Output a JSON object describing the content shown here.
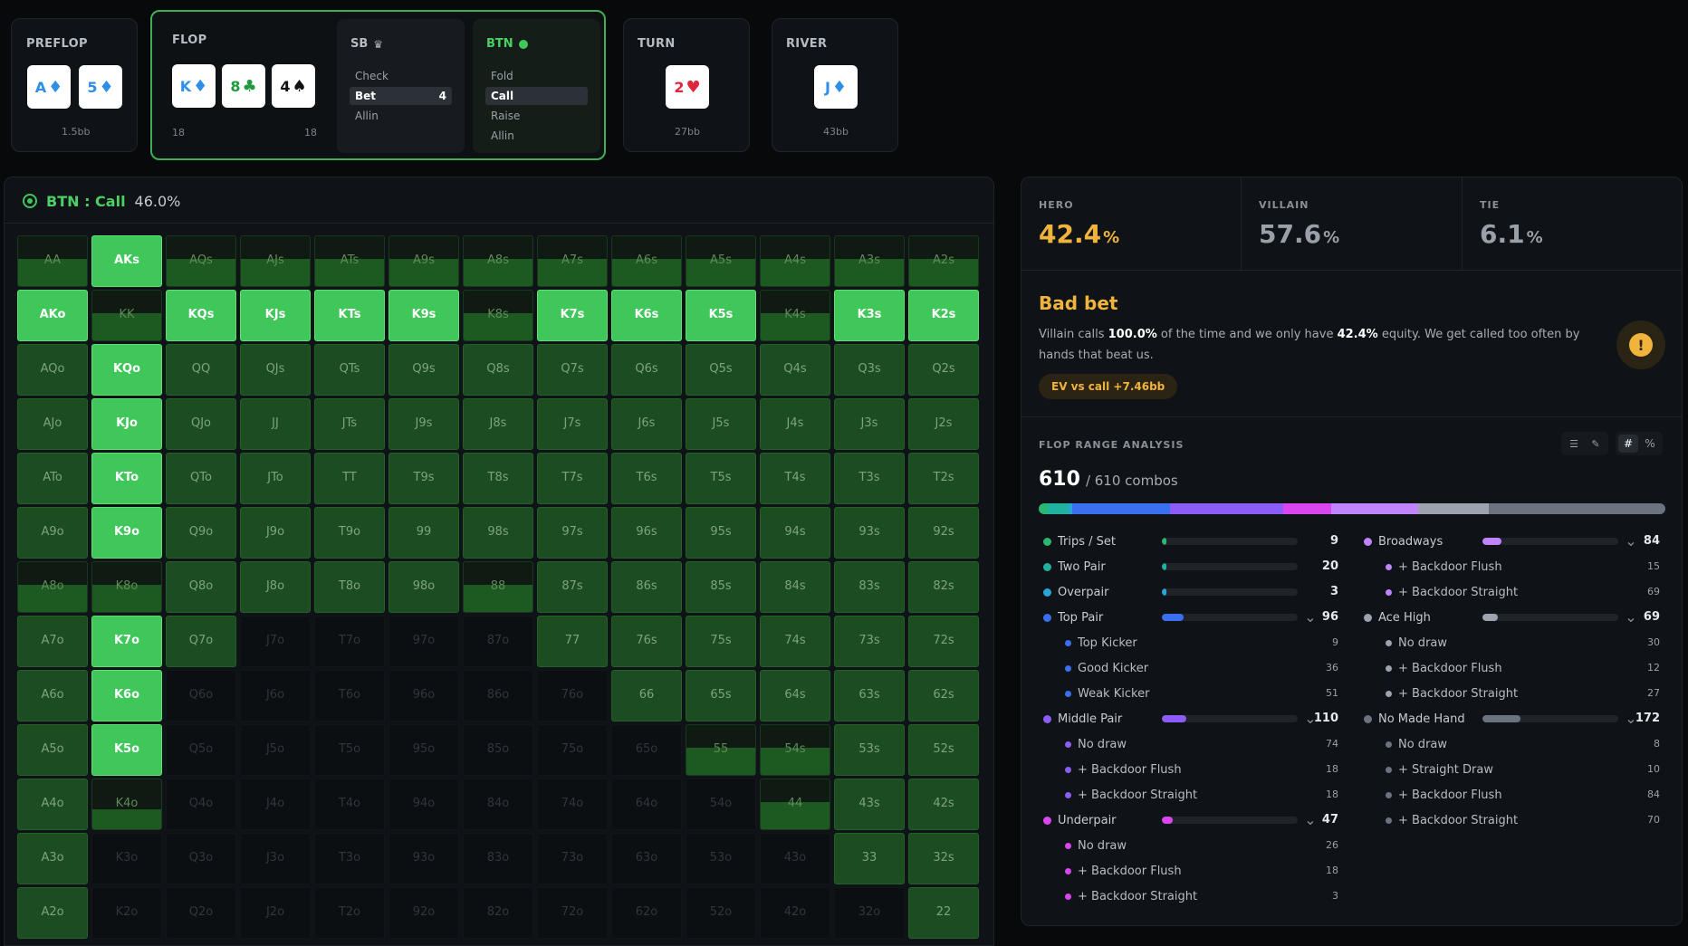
{
  "streets": {
    "preflop": {
      "title": "PREFLOP",
      "amount": "1.5bb",
      "cards": [
        {
          "rank": "A",
          "suit": "♦",
          "color": "blue"
        },
        {
          "rank": "5",
          "suit": "♦",
          "color": "blue"
        }
      ]
    },
    "flop": {
      "title": "FLOP",
      "amount_left": "18",
      "amount_right": "18",
      "cards": [
        {
          "rank": "K",
          "suit": "♦",
          "color": "blue"
        },
        {
          "rank": "8",
          "suit": "♣",
          "color": "green"
        },
        {
          "rank": "4",
          "suit": "♠",
          "color": "black"
        }
      ],
      "sb": {
        "title": "SB",
        "icon": "crown-icon",
        "actions": [
          {
            "label": "Check",
            "value": ""
          },
          {
            "label": "Bet",
            "value": "4",
            "selected": true
          },
          {
            "label": "Allin",
            "value": ""
          }
        ]
      },
      "btn": {
        "title": "BTN",
        "icon": "active-dot-icon",
        "actions": [
          {
            "label": "Fold"
          },
          {
            "label": "Call",
            "selected": true
          },
          {
            "label": "Raise"
          },
          {
            "label": "Allin"
          }
        ]
      }
    },
    "turn": {
      "title": "TURN",
      "amount": "27bb",
      "cards": [
        {
          "rank": "2",
          "suit": "♥",
          "color": "red"
        }
      ]
    },
    "river": {
      "title": "RIVER",
      "amount": "43bb",
      "cards": [
        {
          "rank": "J",
          "suit": "♦",
          "color": "blue"
        }
      ]
    }
  },
  "range": {
    "header_label": "BTN : Call",
    "header_pct": "46.0%",
    "header_icon": "target-icon",
    "rows": [
      [
        "AA",
        "AKs",
        "AQs",
        "AJs",
        "ATs",
        "A9s",
        "A8s",
        "A7s",
        "A6s",
        "A5s",
        "A4s",
        "A3s",
        "A2s"
      ],
      [
        "AKo",
        "KK",
        "KQs",
        "KJs",
        "KTs",
        "K9s",
        "K8s",
        "K7s",
        "K6s",
        "K5s",
        "K4s",
        "K3s",
        "K2s"
      ],
      [
        "AQo",
        "KQo",
        "QQ",
        "QJs",
        "QTs",
        "Q9s",
        "Q8s",
        "Q7s",
        "Q6s",
        "Q5s",
        "Q4s",
        "Q3s",
        "Q2s"
      ],
      [
        "AJo",
        "KJo",
        "QJo",
        "JJ",
        "JTs",
        "J9s",
        "J8s",
        "J7s",
        "J6s",
        "J5s",
        "J4s",
        "J3s",
        "J2s"
      ],
      [
        "ATo",
        "KTo",
        "QTo",
        "JTo",
        "TT",
        "T9s",
        "T8s",
        "T7s",
        "T6s",
        "T5s",
        "T4s",
        "T3s",
        "T2s"
      ],
      [
        "A9o",
        "K9o",
        "Q9o",
        "J9o",
        "T9o",
        "99",
        "98s",
        "97s",
        "96s",
        "95s",
        "94s",
        "93s",
        "92s"
      ],
      [
        "A8o",
        "K8o",
        "Q8o",
        "J8o",
        "T8o",
        "98o",
        "88",
        "87s",
        "86s",
        "85s",
        "84s",
        "83s",
        "82s"
      ],
      [
        "A7o",
        "K7o",
        "Q7o",
        "J7o",
        "T7o",
        "97o",
        "87o",
        "77",
        "76s",
        "75s",
        "74s",
        "73s",
        "72s"
      ],
      [
        "A6o",
        "K6o",
        "Q6o",
        "J6o",
        "T6o",
        "96o",
        "86o",
        "76o",
        "66",
        "65s",
        "64s",
        "63s",
        "62s"
      ],
      [
        "A5o",
        "K5o",
        "Q5o",
        "J5o",
        "T5o",
        "95o",
        "85o",
        "75o",
        "65o",
        "55",
        "54s",
        "53s",
        "52s"
      ],
      [
        "A4o",
        "K4o",
        "Q4o",
        "J4o",
        "T4o",
        "94o",
        "84o",
        "74o",
        "64o",
        "54o",
        "44",
        "43s",
        "42s"
      ],
      [
        "A3o",
        "K3o",
        "Q3o",
        "J3o",
        "T3o",
        "93o",
        "83o",
        "73o",
        "63o",
        "53o",
        "43o",
        "33",
        "32s"
      ],
      [
        "A2o",
        "K2o",
        "Q2o",
        "J2o",
        "T2o",
        "92o",
        "82o",
        "72o",
        "62o",
        "52o",
        "42o",
        "32o",
        "22"
      ]
    ],
    "states": [
      [
        "p",
        "h",
        "p",
        "p",
        "p",
        "p",
        "p",
        "p",
        "p",
        "p",
        "p",
        "p",
        "p"
      ],
      [
        "h",
        "p",
        "h",
        "h",
        "h",
        "h",
        "p",
        "h",
        "h",
        "h",
        "p",
        "h",
        "h"
      ],
      [
        "f",
        "h",
        "f",
        "f",
        "f",
        "f",
        "f",
        "f",
        "f",
        "f",
        "f",
        "f",
        "f"
      ],
      [
        "f",
        "h",
        "f",
        "f",
        "f",
        "f",
        "f",
        "f",
        "f",
        "f",
        "f",
        "f",
        "f"
      ],
      [
        "f",
        "h",
        "f",
        "f",
        "f",
        "f",
        "f",
        "f",
        "f",
        "f",
        "f",
        "f",
        "f"
      ],
      [
        "f",
        "h",
        "f",
        "f",
        "f",
        "f",
        "f",
        "f",
        "f",
        "f",
        "f",
        "f",
        "f"
      ],
      [
        "p",
        "p",
        "f",
        "f",
        "f",
        "f",
        "p",
        "f",
        "f",
        "f",
        "f",
        "f",
        "f"
      ],
      [
        "f",
        "h",
        "f",
        "e",
        "e",
        "e",
        "e",
        "f",
        "f",
        "f",
        "f",
        "f",
        "f"
      ],
      [
        "f",
        "h",
        "e",
        "e",
        "e",
        "e",
        "e",
        "e",
        "f",
        "f",
        "f",
        "f",
        "f"
      ],
      [
        "f",
        "h",
        "e",
        "e",
        "e",
        "e",
        "e",
        "e",
        "e",
        "p",
        "p",
        "f",
        "f"
      ],
      [
        "f",
        "d",
        "e",
        "e",
        "e",
        "e",
        "e",
        "e",
        "e",
        "e",
        "p",
        "f",
        "f"
      ],
      [
        "f",
        "e",
        "e",
        "e",
        "e",
        "e",
        "e",
        "e",
        "e",
        "e",
        "e",
        "f",
        "f"
      ],
      [
        "f",
        "e",
        "e",
        "e",
        "e",
        "e",
        "e",
        "e",
        "e",
        "e",
        "e",
        "e",
        "f"
      ]
    ]
  },
  "equity": {
    "hero": {
      "label": "HERO",
      "value": "42.4",
      "unit": "%",
      "color": "#f0b43c"
    },
    "villain": {
      "label": "VILLAIN",
      "value": "57.6",
      "unit": "%",
      "color": "#9aa0a8"
    },
    "tie": {
      "label": "TIE",
      "value": "6.1",
      "unit": "%",
      "color": "#9aa0a8"
    }
  },
  "verdict": {
    "title": "Bad bet",
    "text_1": "Villain calls ",
    "text_2": "100.0%",
    "text_3": " of the time and we only have ",
    "text_4": "42.4%",
    "text_5": " equity. We get called too often by hands that beat us.",
    "badge": "EV vs call +7.46bb",
    "icon": "warning-icon"
  },
  "analysis": {
    "title": "FLOP RANGE ANALYSIS",
    "combos_main": "610",
    "combos_rest": "/ 610 combos",
    "tool_icons": [
      "list-icon",
      "pin-icon",
      "hash-icon",
      "percent-icon"
    ],
    "tool_labels": [
      "☰",
      "✎",
      "#",
      "%"
    ],
    "stack": [
      {
        "color": "#2bb673",
        "frac": 0.015
      },
      {
        "color": "#20b2a0",
        "frac": 0.033
      },
      {
        "color": "#2aa6d6",
        "frac": 0.005
      },
      {
        "color": "#3a6ff0",
        "frac": 0.157
      },
      {
        "color": "#8b5cf6",
        "frac": 0.18
      },
      {
        "color": "#d946ef",
        "frac": 0.077
      },
      {
        "color": "#c084fc",
        "frac": 0.138
      },
      {
        "color": "#9ca3af",
        "frac": 0.113
      },
      {
        "color": "#6b7280",
        "frac": 0.282
      }
    ],
    "left": [
      {
        "label": "Trips / Set",
        "count": "9",
        "color": "#2bb673",
        "frac": 0.015
      },
      {
        "label": "Two Pair",
        "count": "20",
        "color": "#20b2a0",
        "frac": 0.033
      },
      {
        "label": "Overpair",
        "count": "3",
        "color": "#2aa6d6",
        "frac": 0.005
      },
      {
        "label": "Top Pair",
        "count": "96",
        "color": "#3a6ff0",
        "frac": 0.157,
        "expand": true
      },
      {
        "label": "Top Kicker",
        "count": "9",
        "color": "#3a6ff0",
        "sub": true
      },
      {
        "label": "Good Kicker",
        "count": "36",
        "color": "#3a6ff0",
        "sub": true
      },
      {
        "label": "Weak Kicker",
        "count": "51",
        "color": "#3a6ff0",
        "sub": true
      },
      {
        "label": "Middle Pair",
        "count": "110",
        "color": "#8b5cf6",
        "frac": 0.18,
        "expand": true
      },
      {
        "label": "No draw",
        "count": "74",
        "color": "#8b5cf6",
        "sub": true
      },
      {
        "label": "+ Backdoor Flush",
        "count": "18",
        "color": "#8b5cf6",
        "sub": true
      },
      {
        "label": "+ Backdoor Straight",
        "count": "18",
        "color": "#8b5cf6",
        "sub": true
      },
      {
        "label": "Underpair",
        "count": "47",
        "color": "#d946ef",
        "frac": 0.077,
        "expand": true
      },
      {
        "label": "No draw",
        "count": "26",
        "color": "#d946ef",
        "sub": true
      },
      {
        "label": "+ Backdoor Flush",
        "count": "18",
        "color": "#d946ef",
        "sub": true
      },
      {
        "label": "+ Backdoor Straight",
        "count": "3",
        "color": "#d946ef",
        "sub": true
      }
    ],
    "right": [
      {
        "label": "Broadways",
        "count": "84",
        "color": "#c084fc",
        "frac": 0.138,
        "expand": true
      },
      {
        "label": "+ Backdoor Flush",
        "count": "15",
        "color": "#c084fc",
        "sub": true
      },
      {
        "label": "+ Backdoor Straight",
        "count": "69",
        "color": "#c084fc",
        "sub": true
      },
      {
        "label": "Ace High",
        "count": "69",
        "color": "#9ca3af",
        "frac": 0.113,
        "expand": true
      },
      {
        "label": "No draw",
        "count": "30",
        "color": "#9ca3af",
        "sub": true
      },
      {
        "label": "+ Backdoor Flush",
        "count": "12",
        "color": "#9ca3af",
        "sub": true
      },
      {
        "label": "+ Backdoor Straight",
        "count": "27",
        "color": "#9ca3af",
        "sub": true
      },
      {
        "label": "No Made Hand",
        "count": "172",
        "color": "#6b7280",
        "frac": 0.282,
        "expand": true
      },
      {
        "label": "No draw",
        "count": "8",
        "color": "#6b7280",
        "sub": true
      },
      {
        "label": "+ Straight Draw",
        "count": "10",
        "color": "#6b7280",
        "sub": true
      },
      {
        "label": "+ Backdoor Flush",
        "count": "84",
        "color": "#6b7280",
        "sub": true
      },
      {
        "label": "+ Backdoor Straight",
        "count": "70",
        "color": "#6b7280",
        "sub": true
      }
    ]
  }
}
